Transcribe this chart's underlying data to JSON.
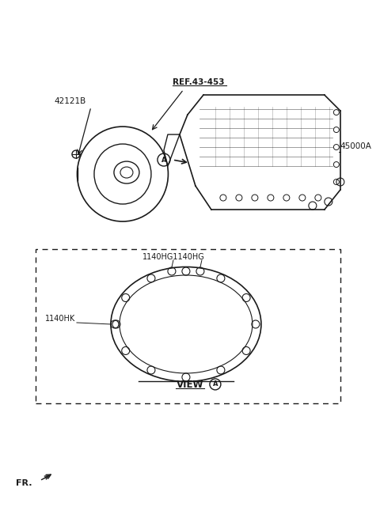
{
  "bg_color": "#ffffff",
  "fig_width": 4.8,
  "fig_height": 6.55,
  "dpi": 100,
  "label_42121B": "42121B",
  "label_REF": "REF.43-453",
  "label_45000A": "45000A",
  "label_1140HG_1": "1140HG",
  "label_1140HG_2": "1140HG",
  "label_1140HK": "1140HK",
  "label_VIEW": "VIEW",
  "label_A_circle": "A",
  "label_FR": "FR.",
  "line_color": "#1a1a1a",
  "text_color": "#1a1a1a"
}
